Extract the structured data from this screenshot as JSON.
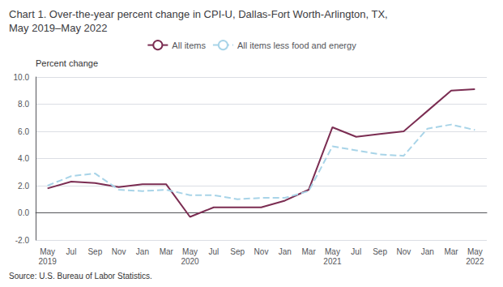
{
  "chart_data": {
    "type": "line",
    "title": "Chart 1. Over-the-year percent change in CPI-U, Dallas-Fort Worth-Arlington, TX,\nMay 2019–May 2022",
    "ylabel": "Percent change",
    "source": "Source: U.S. Bureau of Labor Statistics.",
    "categories": [
      "May\n2019",
      "Jul",
      "Sep",
      "Nov",
      "Jan",
      "Mar",
      "May\n2020",
      "Jul",
      "Sep",
      "Nov",
      "Jan",
      "Mar",
      "May\n2021",
      "Jul",
      "Sep",
      "Nov",
      "Jan",
      "Mar",
      "May\n2022"
    ],
    "series": [
      {
        "name": "All items",
        "color": "#7B2D52",
        "line_style": "solid",
        "values": [
          1.8,
          2.3,
          2.2,
          1.9,
          2.1,
          2.1,
          -0.3,
          0.4,
          0.4,
          0.4,
          0.9,
          1.7,
          6.3,
          5.6,
          5.8,
          6.0,
          7.5,
          9.0,
          9.1
        ]
      },
      {
        "name": "All items less food and energy",
        "color": "#A8D4E8",
        "line_style": "dashed",
        "values": [
          2.0,
          2.7,
          2.9,
          1.7,
          1.6,
          1.7,
          1.3,
          1.3,
          1.0,
          1.1,
          1.1,
          1.6,
          4.9,
          4.6,
          4.3,
          4.2,
          6.2,
          6.5,
          6.1
        ]
      }
    ],
    "ylim": [
      -2.0,
      10.0
    ],
    "yticks": [
      {
        "value": -2.0,
        "label": "-2.0"
      },
      {
        "value": 0.0,
        "label": "0.0"
      },
      {
        "value": 2.0,
        "label": "2.0"
      },
      {
        "value": 4.0,
        "label": "4.0"
      },
      {
        "value": 6.0,
        "label": "6.0"
      },
      {
        "value": 8.0,
        "label": "8.0"
      },
      {
        "value": 10.0,
        "label": "10.0"
      }
    ],
    "grid": true,
    "legend": "top"
  }
}
